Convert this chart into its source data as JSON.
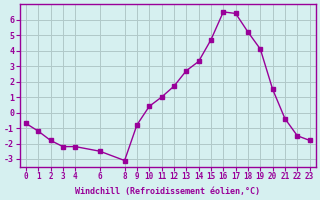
{
  "x": [
    0,
    1,
    2,
    3,
    4,
    6,
    8,
    9,
    10,
    11,
    12,
    13,
    14,
    15,
    16,
    17,
    18,
    19,
    20,
    21,
    22,
    23
  ],
  "y": [
    -0.7,
    -1.2,
    -1.8,
    -2.2,
    -2.2,
    -2.5,
    -3.1,
    -0.8,
    0.4,
    1.0,
    1.7,
    2.7,
    3.3,
    4.7,
    6.5,
    6.4,
    5.2,
    4.1,
    1.5,
    -0.4,
    -1.5,
    -1.8
  ],
  "line_color": "#990099",
  "marker_color": "#990099",
  "bg_color": "#d6f0f0",
  "grid_color": "#b0c8c8",
  "axis_color": "#990099",
  "tick_color": "#990099",
  "xlabel": "Windchill (Refroidissement éolien,°C)",
  "xticks": [
    0,
    1,
    2,
    3,
    4,
    6,
    8,
    9,
    10,
    11,
    12,
    13,
    14,
    15,
    16,
    17,
    18,
    19,
    20,
    21,
    22,
    23
  ],
  "xtick_labels": [
    "0",
    "1",
    "2",
    "3",
    "4",
    "6",
    "8",
    "9",
    "10",
    "11",
    "12",
    "13",
    "14",
    "15",
    "16",
    "17",
    "18",
    "19",
    "20",
    "21",
    "22",
    "23"
  ],
  "yticks": [
    -3,
    -2,
    -1,
    0,
    1,
    2,
    3,
    4,
    5,
    6
  ],
  "ylim": [
    -3.5,
    7.0
  ],
  "xlim": [
    -0.5,
    23.5
  ]
}
